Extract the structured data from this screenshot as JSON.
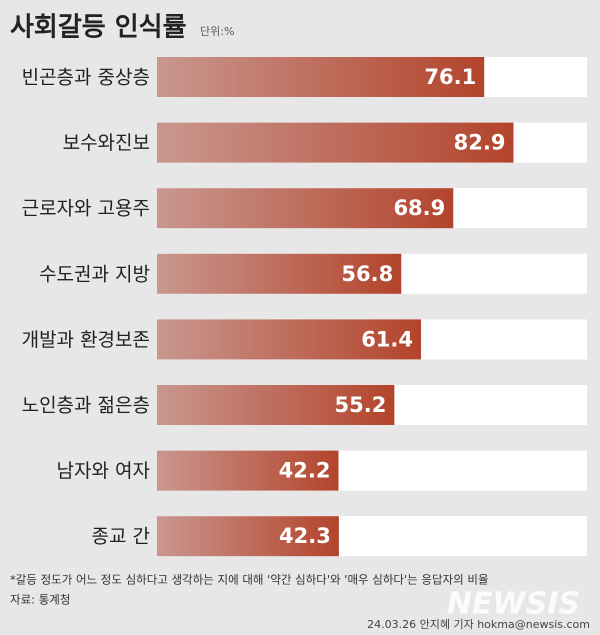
{
  "chart_data": {
    "type": "bar",
    "orientation": "horizontal",
    "title": "사회갈등 인식률",
    "unit": "단위:%",
    "categories": [
      "빈곤층과 중상층",
      "보수와진보",
      "근로자와 고용주",
      "수도권과 지방",
      "개발과 환경보존",
      "노인층과 젊은층",
      "남자와 여자",
      "종교 간"
    ],
    "values": [
      76.1,
      82.9,
      68.9,
      56.8,
      61.4,
      55.2,
      42.2,
      42.3
    ],
    "color": "#b3442b",
    "xlim": [
      0,
      100
    ],
    "note": "*갈등 정도가 어느 정도 심하다고 생각하는 지에 대해 '약간 심하다'와 '매우 심하다'는 응답자의 비율",
    "source": "자료: 통계청",
    "credit": "24.03.26 안지혜 기자 hokma@newsis.com",
    "logo": "NEWSIS"
  }
}
